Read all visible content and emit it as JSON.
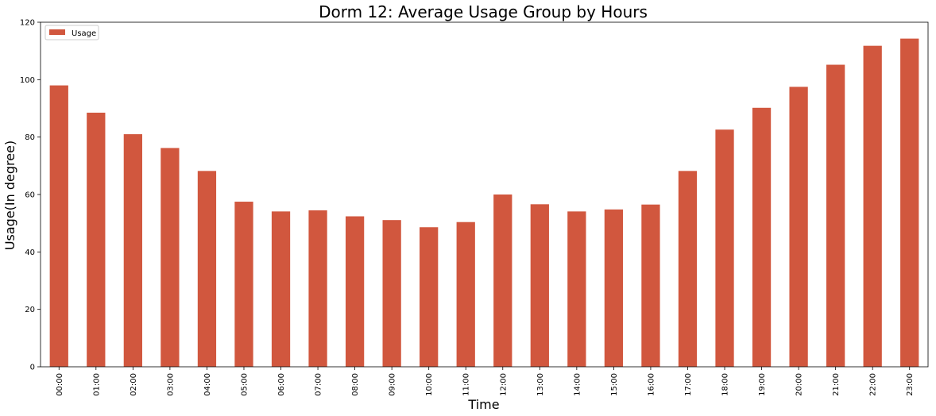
{
  "chart_data": {
    "type": "bar",
    "title": "Dorm 12: Average Usage Group by Hours",
    "xlabel": "Time",
    "ylabel": "Usage(In degree)",
    "categories": [
      "00:00",
      "01:00",
      "02:00",
      "03:00",
      "04:00",
      "05:00",
      "06:00",
      "07:00",
      "08:00",
      "09:00",
      "10:00",
      "11:00",
      "12:00",
      "13:00",
      "14:00",
      "15:00",
      "16:00",
      "17:00",
      "18:00",
      "19:00",
      "20:00",
      "21:00",
      "22:00",
      "23:00"
    ],
    "series": [
      {
        "name": "Usage",
        "color": "#d1573e",
        "values": [
          98.0,
          88.5,
          81.0,
          76.2,
          68.2,
          57.5,
          54.1,
          54.5,
          52.4,
          51.1,
          48.6,
          50.4,
          60.0,
          56.6,
          54.1,
          54.8,
          56.5,
          68.2,
          82.6,
          90.2,
          97.5,
          105.2,
          111.8,
          114.3
        ]
      }
    ],
    "ylim": [
      0,
      120
    ],
    "yticks": [
      0,
      20,
      40,
      60,
      80,
      100,
      120
    ],
    "grid": false,
    "legend_position": "top-left"
  }
}
